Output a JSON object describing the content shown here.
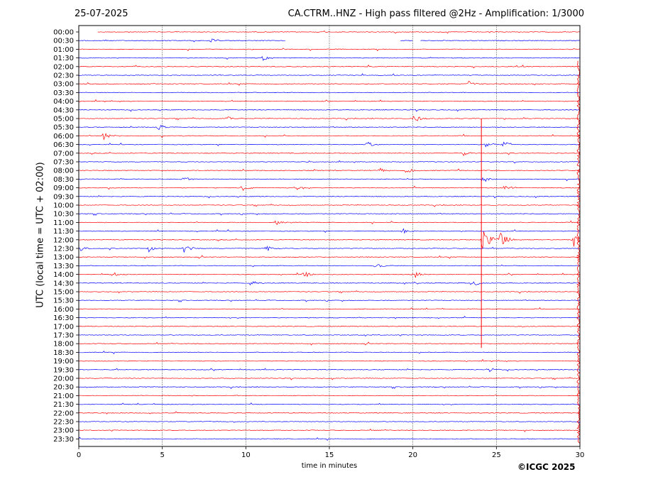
{
  "header": {
    "date": "25-07-2025",
    "title": "CA.CTRM..HNZ - High pass filtered @2Hz - Amplification: 1/3000"
  },
  "footer": {
    "copyright": "©ICGC 2025"
  },
  "chart_data": {
    "type": "line",
    "title": "CA.CTRM..HNZ - High pass filtered @2Hz - Amplification: 1/3000",
    "xlabel": "time in minutes",
    "ylabel": "UTC (local time = UTC + 02:00)",
    "xlim": [
      0,
      30
    ],
    "x_ticks": [
      0,
      5,
      10,
      15,
      20,
      25,
      30
    ],
    "grid": "vertical dotted at 5-minute intervals",
    "y_ticks": [
      "00:00",
      "00:30",
      "01:00",
      "01:30",
      "02:00",
      "02:30",
      "03:00",
      "03:30",
      "04:00",
      "04:30",
      "05:00",
      "05:30",
      "06:00",
      "06:30",
      "07:00",
      "07:30",
      "08:00",
      "08:30",
      "09:00",
      "09:30",
      "10:00",
      "10:30",
      "11:00",
      "11:30",
      "12:00",
      "12:30",
      "13:00",
      "13:30",
      "14:00",
      "14:30",
      "15:00",
      "15:30",
      "16:00",
      "16:30",
      "17:00",
      "17:30",
      "18:00",
      "18:30",
      "19:00",
      "19:30",
      "20:00",
      "20:30",
      "21:00",
      "21:30",
      "22:00",
      "22:30",
      "23:00",
      "23:30"
    ],
    "trace_colors": [
      "#ff0000",
      "#0000ff"
    ],
    "gaps": [
      {
        "row": "00:00",
        "from": 0,
        "to": 1.1
      },
      {
        "row": "00:30",
        "from": 12.4,
        "to": 19.2
      },
      {
        "row": "00:30",
        "from": 20.0,
        "to": 20.4
      }
    ],
    "events": [
      {
        "row": "00:30",
        "t": 7.9,
        "amp": 0.25
      },
      {
        "row": "01:30",
        "t": 11.0,
        "amp": 0.35
      },
      {
        "row": "03:00",
        "t": 23.3,
        "amp": 0.35
      },
      {
        "row": "05:00",
        "t": 8.9,
        "amp": 0.3
      },
      {
        "row": "05:00",
        "t": 20.1,
        "amp": 0.55
      },
      {
        "row": "05:30",
        "t": 4.8,
        "amp": 0.4
      },
      {
        "row": "06:00",
        "t": 1.5,
        "amp": 0.5
      },
      {
        "row": "06:30",
        "t": 17.2,
        "amp": 0.45
      },
      {
        "row": "06:30",
        "t": 24.4,
        "amp": 0.4
      },
      {
        "row": "06:30",
        "t": 25.4,
        "amp": 0.5
      },
      {
        "row": "07:00",
        "t": 23.0,
        "amp": 0.3
      },
      {
        "row": "08:00",
        "t": 18.0,
        "amp": 0.3
      },
      {
        "row": "08:00",
        "t": 19.6,
        "amp": 0.35
      },
      {
        "row": "08:30",
        "t": 6.2,
        "amp": 0.4
      },
      {
        "row": "08:30",
        "t": 24.2,
        "amp": 0.45
      },
      {
        "row": "09:00",
        "t": 9.8,
        "amp": 0.4
      },
      {
        "row": "09:00",
        "t": 13.0,
        "amp": 0.35
      },
      {
        "row": "09:00",
        "t": 25.5,
        "amp": 0.35
      },
      {
        "row": "11:00",
        "t": 11.8,
        "amp": 0.3
      },
      {
        "row": "11:30",
        "t": 19.4,
        "amp": 0.3
      },
      {
        "row": "12:00",
        "t": 24.2,
        "amp": 1.8
      },
      {
        "row": "12:00",
        "t": 25.2,
        "amp": 1.3
      },
      {
        "row": "12:00",
        "t": 29.6,
        "amp": 1.0
      },
      {
        "row": "12:30",
        "t": 0.0,
        "amp": 0.5
      },
      {
        "row": "12:30",
        "t": 4.2,
        "amp": 0.4
      },
      {
        "row": "12:30",
        "t": 6.3,
        "amp": 0.55
      },
      {
        "row": "12:30",
        "t": 11.2,
        "amp": 0.35
      },
      {
        "row": "13:30",
        "t": 17.8,
        "amp": 0.3
      },
      {
        "row": "14:00",
        "t": 2.0,
        "amp": 0.35
      },
      {
        "row": "14:00",
        "t": 13.5,
        "amp": 0.4
      },
      {
        "row": "14:00",
        "t": 20.1,
        "amp": 0.5
      },
      {
        "row": "14:30",
        "t": 10.3,
        "amp": 0.3
      },
      {
        "row": "14:30",
        "t": 23.7,
        "amp": 0.3
      },
      {
        "row": "19:30",
        "t": 24.5,
        "amp": 0.3
      }
    ],
    "spike_line": {
      "t": 24.1,
      "from_row": "05:00",
      "to_row": "18:00"
    },
    "edge_signal": {
      "t": 30,
      "from_row": "02:00",
      "to_row": "23:30"
    }
  }
}
